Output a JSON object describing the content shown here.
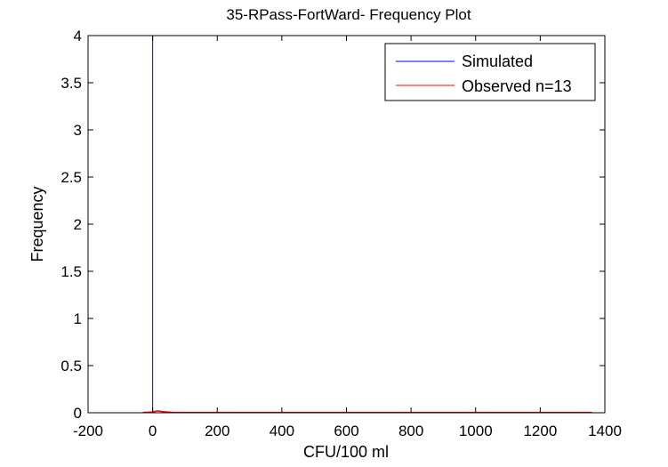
{
  "chart_data": {
    "type": "line",
    "title": "35-RPass-FortWard- Frequency Plot",
    "xlabel": "CFU/100 ml",
    "ylabel": "Frequency",
    "xlim": [
      -200,
      1400
    ],
    "ylim": [
      0,
      4
    ],
    "xticks": [
      -200,
      0,
      200,
      400,
      600,
      800,
      1000,
      1200,
      1400
    ],
    "yticks": [
      0,
      0.5,
      1,
      1.5,
      2,
      2.5,
      3,
      3.5,
      4
    ],
    "xtick_labels": [
      "-200",
      "0",
      "200",
      "400",
      "600",
      "800",
      "1000",
      "1200",
      "1400"
    ],
    "ytick_labels": [
      "0",
      "0.5",
      "1",
      "1.5",
      "2",
      "2.5",
      "3",
      "3.5",
      "4"
    ],
    "grid": false,
    "legend_position": "top-right",
    "series": [
      {
        "name": "Simulated",
        "color": "#0000ff",
        "x": [
          0,
          0,
          0
        ],
        "y": [
          0,
          4,
          0
        ]
      },
      {
        "name": "Observed n=13",
        "color": "#ff0000",
        "x": [
          -30,
          0,
          15,
          35,
          60,
          100,
          150,
          200,
          260,
          1250,
          1300,
          1360
        ],
        "y": [
          0.003,
          0.008,
          0.02,
          0.01,
          0.004,
          0.003,
          0.003,
          0.003,
          0.003,
          0.003,
          0.003,
          0.003
        ]
      }
    ]
  }
}
